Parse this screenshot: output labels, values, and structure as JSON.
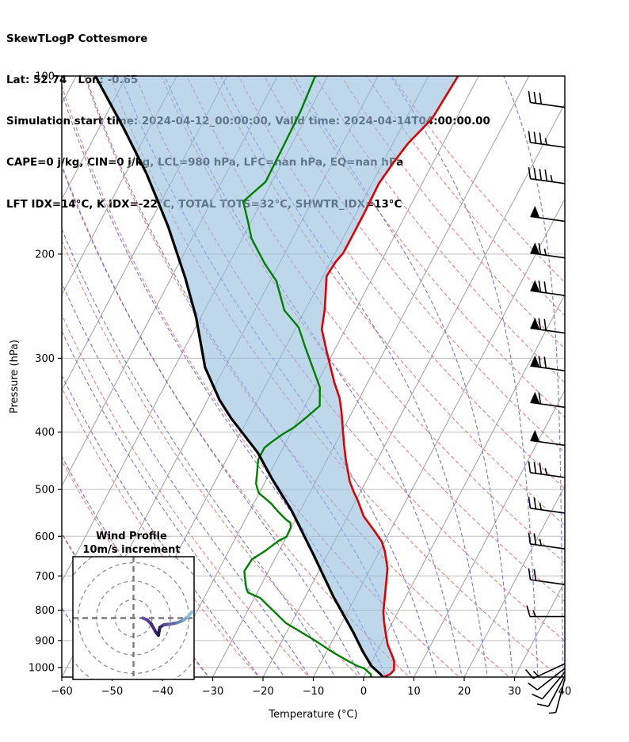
{
  "header": {
    "lines": [
      "SkewTLogP Cottesmore",
      "Lat: 52.74   Lon: -0.65",
      "Simulation start time: 2024-04-12_00:00:00, Valid time: 2024-04-14T04:00:00.00",
      "CAPE=0 j/kg, CIN=0 j/kg, LCL=980 hPa, LFC=nan hPa, EQ=nan hPa",
      "LFT IDX=14°C, K IDX=-22°C, TOTAL TOTS=32°C, SHWTR_IDX=13°C"
    ]
  },
  "chart_data": {
    "type": "skewt-logp",
    "station": "Cottesmore",
    "pressure_axis": {
      "label": "Pressure (hPa)",
      "ticks": [
        100,
        200,
        300,
        400,
        500,
        600,
        700,
        800,
        900,
        1000
      ],
      "range": [
        100,
        1050
      ]
    },
    "temperature_axis": {
      "label": "Temperature (°C)",
      "ticks": [
        -60,
        -50,
        -40,
        -30,
        -20,
        -10,
        0,
        10,
        20,
        30,
        40
      ],
      "range": [
        -60,
        40
      ]
    },
    "temperature_profile": [
      [
        1038,
        3.9
      ],
      [
        1026,
        5.0
      ],
      [
        1010,
        5.3
      ],
      [
        975,
        4.4
      ],
      [
        950,
        3.2
      ],
      [
        915,
        1.4
      ],
      [
        875,
        -0.2
      ],
      [
        835,
        -1.8
      ],
      [
        805,
        -2.9
      ],
      [
        755,
        -4.3
      ],
      [
        715,
        -5.5
      ],
      [
        680,
        -6.6
      ],
      [
        635,
        -9.0
      ],
      [
        612,
        -10.6
      ],
      [
        585,
        -13.4
      ],
      [
        555,
        -16.8
      ],
      [
        520,
        -19.8
      ],
      [
        505,
        -21.3
      ],
      [
        485,
        -23.2
      ],
      [
        445,
        -26.3
      ],
      [
        420,
        -28.2
      ],
      [
        395,
        -30.1
      ],
      [
        370,
        -32.1
      ],
      [
        350,
        -34.0
      ],
      [
        330,
        -36.6
      ],
      [
        290,
        -41.7
      ],
      [
        268,
        -44.7
      ],
      [
        248,
        -46.2
      ],
      [
        230,
        -48.0
      ],
      [
        218,
        -49.3
      ],
      [
        206,
        -49.0
      ],
      [
        199,
        -48.4
      ],
      [
        185,
        -48.4
      ],
      [
        170,
        -48.4
      ],
      [
        152,
        -48.6
      ],
      [
        140,
        -47.9
      ],
      [
        130,
        -47.0
      ],
      [
        118,
        -44.8
      ],
      [
        105,
        -44.3
      ],
      [
        100,
        -44.1
      ]
    ],
    "dewpoint_profile": [
      [
        1044,
        2.7
      ],
      [
        1040,
        1.6
      ],
      [
        1026,
        1.1
      ],
      [
        1003,
        -0.8
      ],
      [
        994,
        -2.4
      ],
      [
        973,
        -5.0
      ],
      [
        943,
        -8.6
      ],
      [
        895,
        -14.1
      ],
      [
        841,
        -21.1
      ],
      [
        763,
        -28.8
      ],
      [
        747,
        -31.8
      ],
      [
        736,
        -32.5
      ],
      [
        720,
        -33.3
      ],
      [
        687,
        -34.8
      ],
      [
        656,
        -34.5
      ],
      [
        634,
        -32.7
      ],
      [
        611,
        -31.2
      ],
      [
        601,
        -30.0
      ],
      [
        580,
        -30.1
      ],
      [
        569,
        -30.7
      ],
      [
        562,
        -31.9
      ],
      [
        545,
        -34.3
      ],
      [
        527,
        -36.7
      ],
      [
        507,
        -40.1
      ],
      [
        489,
        -41.6
      ],
      [
        445,
        -43.7
      ],
      [
        425,
        -43.7
      ],
      [
        417,
        -43.0
      ],
      [
        404,
        -41.6
      ],
      [
        392,
        -39.9
      ],
      [
        376,
        -38.4
      ],
      [
        361,
        -37.1
      ],
      [
        336,
        -39.0
      ],
      [
        288,
        -46.0
      ],
      [
        266,
        -49.5
      ],
      [
        249,
        -54.1
      ],
      [
        222,
        -58.8
      ],
      [
        208,
        -62.8
      ],
      [
        188,
        -68.2
      ],
      [
        175,
        -70.9
      ],
      [
        163,
        -73.7
      ],
      [
        151,
        -71.3
      ],
      [
        130,
        -71.5
      ],
      [
        115,
        -71.7
      ],
      [
        100,
        -72.5
      ]
    ],
    "parcel_profile": [
      [
        1038,
        3.8
      ],
      [
        1028,
        3.2
      ],
      [
        994,
        0.4
      ],
      [
        940,
        -2.8
      ],
      [
        874,
        -6.6
      ],
      [
        759,
        -14.4
      ],
      [
        644,
        -22.8
      ],
      [
        543,
        -31.7
      ],
      [
        480,
        -38.9
      ],
      [
        434,
        -44.4
      ],
      [
        379,
        -53.4
      ],
      [
        353,
        -57.6
      ],
      [
        311,
        -63.9
      ],
      [
        256,
        -70.9
      ],
      [
        220,
        -77.1
      ],
      [
        180,
        -85.9
      ],
      [
        160,
        -91.5
      ],
      [
        146,
        -95.9
      ],
      [
        123,
        -104.9
      ],
      [
        100,
        -116.2
      ]
    ],
    "wind_barbs": [
      [
        113,
        30,
        8
      ],
      [
        132,
        35,
        8
      ],
      [
        152,
        45,
        8
      ],
      [
        176,
        50,
        8
      ],
      [
        203,
        65,
        8
      ],
      [
        235,
        70,
        8
      ],
      [
        272,
        70,
        8
      ],
      [
        315,
        70,
        8
      ],
      [
        363,
        60,
        8
      ],
      [
        421,
        50,
        8
      ],
      [
        477,
        35,
        8
      ],
      [
        548,
        25,
        8
      ],
      [
        630,
        25,
        8
      ],
      [
        724,
        20,
        8
      ],
      [
        820,
        15,
        0
      ],
      [
        985,
        15,
        -25
      ],
      [
        1003,
        10,
        -38
      ],
      [
        1018,
        10,
        -50
      ],
      [
        1032,
        10,
        -62
      ],
      [
        1045,
        5,
        -75
      ]
    ],
    "hodograph": {
      "title": "Wind Profile",
      "subtitle": "10m/s increment",
      "rings_ms": [
        10,
        20,
        30,
        40
      ],
      "trace_uv_ms": [
        [
          5.0,
          0.0
        ],
        [
          7.5,
          -1.0
        ],
        [
          9.7,
          -3.3
        ],
        [
          12.0,
          -7.5
        ],
        [
          13.5,
          -9.3
        ],
        [
          14.3,
          -5.0
        ],
        [
          16.5,
          -3.6
        ],
        [
          19.5,
          -3.3
        ],
        [
          23.5,
          -2.6
        ],
        [
          27.0,
          -1.2
        ],
        [
          29.5,
          0.8
        ],
        [
          31.6,
          3.3
        ]
      ],
      "segment_colors": [
        "#6b4fa0",
        "#5a3b92",
        "#482a80",
        "#381d6d",
        "#2d145c",
        "#3d2d75",
        "#4d4890",
        "#5d66a6",
        "#6e87ba",
        "#7ea6cd",
        "#8fc0dd"
      ]
    },
    "background": {
      "isotherms_c": {
        "start": -120,
        "end": 40,
        "step": 10
      },
      "dry_adiabats_c": {
        "start": -60,
        "end": 150,
        "step": 10
      },
      "moist_adiabats_c": {
        "start": -15,
        "end": 45,
        "step": 5
      },
      "moist_adiabats_purple_c": [
        -60,
        -50,
        -40,
        -30,
        -20
      ]
    },
    "colors": {
      "temperature": "#e00000",
      "dewpoint": "#008000",
      "parcel": "#000000",
      "cape_fill": "rgba(150,190,222,0.62)",
      "isotherm": "#9e9e9e",
      "gridline": "#bdbdbd",
      "dry_adiabat": "#e87070",
      "moist_adiabat": "#5c5ce0",
      "moist_adiabat_cold": "#8a52c2",
      "barb": "#000000",
      "inset_ring": "#8d8d8d",
      "inset_cross": "#7a7a7a"
    }
  }
}
